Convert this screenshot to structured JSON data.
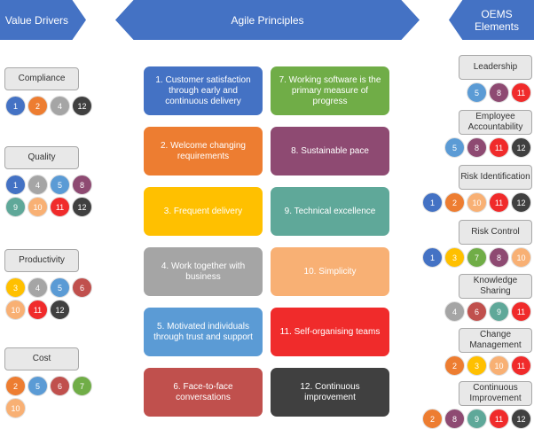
{
  "colors": {
    "1": "#4472c4",
    "2": "#ed7d31",
    "3": "#ffc000",
    "4": "#a5a5a5",
    "5": "#5b9bd5",
    "6": "#c0504d",
    "7": "#70ad47",
    "8": "#8e4a72",
    "9": "#5fa899",
    "10": "#f8b074",
    "11": "#f02b2b",
    "12": "#404040"
  },
  "headers": {
    "left": "Value Drivers",
    "middle": "Agile Principles",
    "right": "OEMS Elements"
  },
  "value_drivers": [
    {
      "label": "Compliance",
      "rows": [
        [
          1,
          2,
          4,
          12
        ]
      ]
    },
    {
      "label": "Quality",
      "rows": [
        [
          1,
          4,
          5,
          8
        ],
        [
          9,
          10,
          11,
          12
        ]
      ]
    },
    {
      "label": "Productivity",
      "rows": [
        [
          3,
          4,
          5,
          6
        ],
        [
          10,
          11,
          12
        ]
      ]
    },
    {
      "label": "Cost",
      "rows": [
        [
          2,
          5,
          6,
          7
        ],
        [
          10
        ]
      ]
    }
  ],
  "principles": [
    {
      "num": 1,
      "text": "1. Customer satisfaction through early and continuous delivery"
    },
    {
      "num": 7,
      "text": "7. Working software is the primary measure of progress"
    },
    {
      "num": 2,
      "text": "2. Welcome changing requirements"
    },
    {
      "num": 8,
      "text": "8. Sustainable pace"
    },
    {
      "num": 3,
      "text": "3. Frequent delivery"
    },
    {
      "num": 9,
      "text": "9. Technical excellence"
    },
    {
      "num": 4,
      "text": "4. Work together with business"
    },
    {
      "num": 10,
      "text": "10. Simplicity"
    },
    {
      "num": 5,
      "text": "5. Motivated individuals through trust and support"
    },
    {
      "num": 11,
      "text": "11. Self-organising teams"
    },
    {
      "num": 6,
      "text": "6. Face-to-face conversations"
    },
    {
      "num": 12,
      "text": "12. Continuous improvement"
    }
  ],
  "oems_elements": [
    {
      "label": "Leadership",
      "dots": [
        5,
        8,
        11
      ]
    },
    {
      "label": "Employee Accountability",
      "dots": [
        5,
        8,
        11,
        12
      ]
    },
    {
      "label": "Risk Identification",
      "dots": [
        1,
        2,
        10,
        11,
        12
      ]
    },
    {
      "label": "Risk Control",
      "dots": [
        1,
        3,
        7,
        8,
        10
      ]
    },
    {
      "label": "Knowledge Sharing",
      "dots": [
        4,
        6,
        9,
        11
      ]
    },
    {
      "label": "Change Management",
      "dots": [
        2,
        3,
        10,
        11
      ]
    },
    {
      "label": "Continuous Improvement",
      "dots": [
        2,
        8,
        9,
        11,
        12
      ]
    }
  ]
}
